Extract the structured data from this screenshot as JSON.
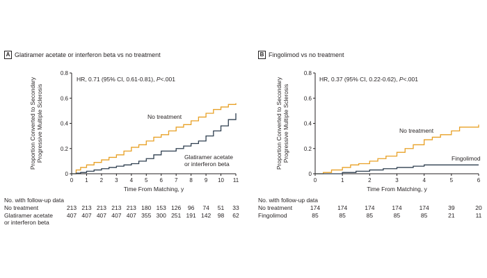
{
  "panels": [
    {
      "letter": "A",
      "title": "Glatiramer acetate or interferon beta vs no treatment",
      "annotation_prefix": "HR, 0.71 (95% CI, 0.61-0.81), ",
      "annotation_p": "P",
      "annotation_suffix": "<.001",
      "series_labels": [
        "No treatment",
        "Glatiramer acetate",
        "or interferon beta"
      ],
      "risk_header": "No. with follow-up data",
      "risk_rows": [
        {
          "label": [
            "No treatment"
          ],
          "values": [
            "213",
            "213",
            "213",
            "213",
            "213",
            "180",
            "153",
            "126",
            "96",
            "74",
            "51",
            "33"
          ]
        },
        {
          "label": [
            "Glatiramer acetate",
            "or interferon beta"
          ],
          "values": [
            "407",
            "407",
            "407",
            "407",
            "407",
            "355",
            "300",
            "251",
            "191",
            "142",
            "98",
            "62"
          ]
        }
      ]
    },
    {
      "letter": "B",
      "title": "Fingolimod vs no treatment",
      "annotation_prefix": "HR, 0.37 (95% CI, 0.22-0.62), ",
      "annotation_p": "P",
      "annotation_suffix": "<.001",
      "series_labels": [
        "No treatment",
        "Fingolimod"
      ],
      "risk_header": "No. with follow-up data",
      "risk_rows": [
        {
          "label": [
            "No treatment"
          ],
          "values": [
            "174",
            "174",
            "174",
            "174",
            "174",
            "39",
            "20"
          ]
        },
        {
          "label": [
            "Fingolimod"
          ],
          "values": [
            "85",
            "85",
            "85",
            "85",
            "85",
            "21",
            "11"
          ]
        }
      ]
    }
  ],
  "colors": {
    "no_treatment": "#e8a025",
    "treatment": "#2e3e4f",
    "axis": "#231f20"
  },
  "chart_data": [
    {
      "type": "line",
      "title": "Glatiramer acetate or interferon beta vs no treatment",
      "xlabel": "Time From Matching, y",
      "ylabel": [
        "Proportion Converted to Secondary",
        "Progressive Multiple Sclerosis"
      ],
      "xlim": [
        0,
        11
      ],
      "ylim": [
        0,
        0.8
      ],
      "xticks": [
        0,
        1,
        2,
        3,
        4,
        5,
        6,
        7,
        8,
        9,
        10,
        11
      ],
      "yticks": [
        0,
        0.2,
        0.4,
        0.6,
        0.8
      ],
      "ytick_labels": [
        "0",
        "0.2",
        "0.4",
        "0.6",
        "0.8"
      ],
      "series": [
        {
          "name": "No treatment",
          "color": "#e8a025",
          "x": [
            0,
            0.3,
            0.6,
            1,
            1.5,
            2,
            2.5,
            3,
            3.5,
            4,
            4.5,
            5,
            5.5,
            6,
            6.5,
            7,
            7.5,
            8,
            8.5,
            9,
            9.5,
            10,
            10.5,
            11
          ],
          "y": [
            0,
            0.03,
            0.05,
            0.07,
            0.09,
            0.11,
            0.13,
            0.15,
            0.18,
            0.21,
            0.23,
            0.26,
            0.29,
            0.31,
            0.34,
            0.37,
            0.39,
            0.42,
            0.45,
            0.48,
            0.51,
            0.53,
            0.55,
            0.56
          ]
        },
        {
          "name": "Glatiramer acetate or interferon beta",
          "color": "#2e3e4f",
          "x": [
            0,
            0.3,
            0.6,
            1,
            1.5,
            2,
            2.5,
            3,
            3.5,
            4,
            4.5,
            5,
            5.5,
            6,
            6.5,
            7,
            7.5,
            8,
            8.5,
            9,
            9.5,
            10,
            10.5,
            11
          ],
          "y": [
            0,
            0.005,
            0.01,
            0.02,
            0.03,
            0.04,
            0.05,
            0.06,
            0.07,
            0.08,
            0.1,
            0.12,
            0.15,
            0.18,
            0.18,
            0.2,
            0.22,
            0.24,
            0.26,
            0.3,
            0.34,
            0.38,
            0.43,
            0.48
          ]
        }
      ]
    },
    {
      "type": "line",
      "title": "Fingolimod vs no treatment",
      "xlabel": "Time From Matching, y",
      "ylabel": [
        "Proportion Converted to Secondary",
        "Progressive Multiple Sclerosis"
      ],
      "xlim": [
        0,
        6
      ],
      "ylim": [
        0,
        0.8
      ],
      "xticks": [
        0,
        1,
        2,
        3,
        4,
        5,
        6
      ],
      "yticks": [
        0,
        0.2,
        0.4,
        0.6,
        0.8
      ],
      "ytick_labels": [
        "0",
        "0.2",
        "0.4",
        "0.6",
        "0.8"
      ],
      "series": [
        {
          "name": "No treatment",
          "color": "#e8a025",
          "x": [
            0,
            0.3,
            0.6,
            1,
            1.3,
            1.6,
            2,
            2.3,
            2.6,
            3,
            3.3,
            3.6,
            4,
            4.3,
            4.6,
            5,
            5.3,
            5.6,
            6
          ],
          "y": [
            0,
            0.01,
            0.03,
            0.05,
            0.07,
            0.08,
            0.1,
            0.12,
            0.14,
            0.17,
            0.2,
            0.23,
            0.27,
            0.29,
            0.31,
            0.34,
            0.37,
            0.37,
            0.39
          ]
        },
        {
          "name": "Fingolimod",
          "color": "#2e3e4f",
          "x": [
            0,
            0.5,
            1,
            1.5,
            2,
            2.5,
            3,
            3.3,
            3.6,
            4,
            4.5,
            5,
            5.5,
            6
          ],
          "y": [
            0,
            0,
            0.01,
            0.02,
            0.03,
            0.04,
            0.05,
            0.05,
            0.06,
            0.07,
            0.07,
            0.07,
            0.07,
            0.07
          ]
        }
      ]
    }
  ]
}
